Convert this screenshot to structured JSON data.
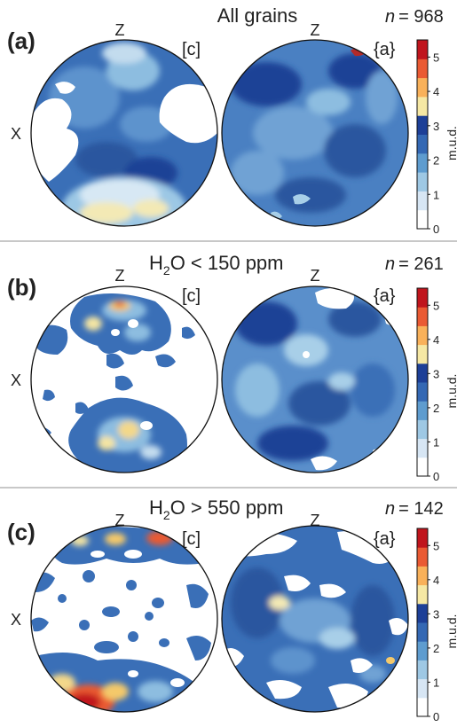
{
  "axis_labels": {
    "z": "Z",
    "x": "X"
  },
  "colorbar": {
    "label": "m.u.d.",
    "ticks": [
      "0",
      "1",
      "2",
      "3",
      "4",
      "5"
    ],
    "range": [
      0,
      5.5
    ],
    "colors": [
      "#ffffff",
      "#d7e6f4",
      "#9ec8e4",
      "#5e9ccf",
      "#3468b4",
      "#1d3f97",
      "#f6e8a4",
      "#f9b15a",
      "#ea5a33",
      "#c0151d"
    ]
  },
  "chart_data": [
    {
      "type": "heatmap",
      "panel": "(a)",
      "title": "All grains",
      "n_label": "n = 968",
      "n_prefix": "n",
      "n_value": "= 968",
      "left_label": "[c]",
      "right_label": "{a}",
      "projection": "pole figure (equal area)",
      "max_value": 3.0
    },
    {
      "type": "heatmap",
      "panel": "(b)",
      "title_main": "H",
      "title_sub": "2",
      "title_rest": "O < 150 ppm",
      "n_label": "n = 261",
      "n_prefix": "n",
      "n_value": "= 261",
      "left_label": "[c]",
      "right_label": "{a}",
      "projection": "pole figure (equal area)",
      "max_value": 5.0
    },
    {
      "type": "heatmap",
      "panel": "(c)",
      "title_main": "H",
      "title_sub": "2",
      "title_rest": "O > 550 ppm",
      "n_label": "n = 142",
      "n_prefix": "n",
      "n_value": "= 142",
      "left_label": "[c]",
      "right_label": "{a}",
      "projection": "pole figure (equal area)",
      "max_value": 5.5
    }
  ]
}
